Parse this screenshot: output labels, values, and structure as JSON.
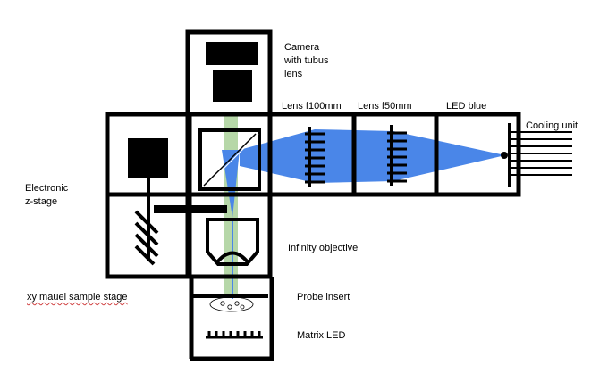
{
  "labels": {
    "camera": [
      "Camera",
      "with tubus",
      "lens"
    ],
    "lens_f100": "Lens f100mm",
    "lens_f50": "Lens f50mm",
    "led_blue": "LED blue",
    "cooling_unit": "Cooling unit",
    "electronic_zstage": [
      "Electronic",
      "z-stage"
    ],
    "infinity_objective": "Infinity objective",
    "xy_stage": "xy mauel sample stage",
    "probe_insert": "Probe insert",
    "matrix_led": "Matrix LED"
  },
  "colors": {
    "outline": "#000000",
    "blue_beam": "#4a86e8",
    "green_beam": "#b6d7a8",
    "background": "#ffffff",
    "spellcheck": "#d04040"
  }
}
